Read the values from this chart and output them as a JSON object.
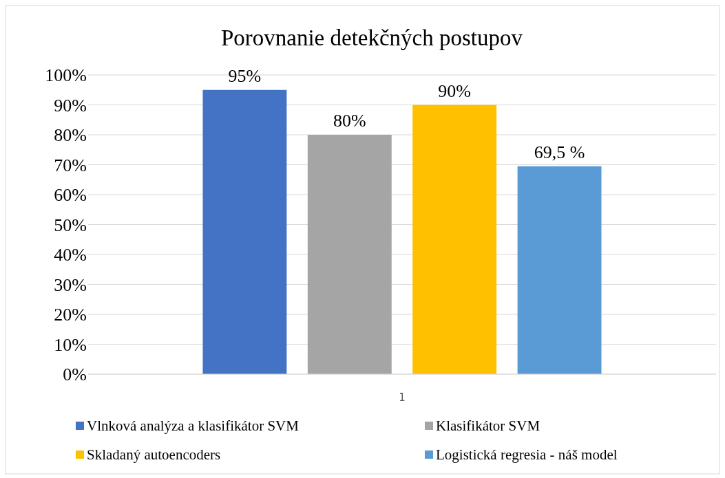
{
  "chart_data": {
    "type": "bar",
    "title": "Porovnanie detekčných postupov",
    "categories": [
      "1"
    ],
    "series": [
      {
        "name": "Vlnková analýza a klasifikátor SVM",
        "color": "#4472c4",
        "values": [
          95
        ],
        "value_labels": [
          "95%"
        ]
      },
      {
        "name": "Klasifikátor SVM",
        "color": "#a5a5a5",
        "values": [
          80
        ],
        "value_labels": [
          "80%"
        ]
      },
      {
        "name": "Skladaný autoencoders",
        "color": "#ffc000",
        "values": [
          90
        ],
        "value_labels": [
          "90%"
        ]
      },
      {
        "name": "Logistická regresia - náš model",
        "color": "#5b9bd5",
        "values": [
          69.5
        ],
        "value_labels": [
          "69,5 %"
        ]
      }
    ],
    "ylim": [
      0,
      100
    ],
    "yticks": [
      {
        "value": 0,
        "label": "0%"
      },
      {
        "value": 10,
        "label": "10%"
      },
      {
        "value": 20,
        "label": "20%"
      },
      {
        "value": 30,
        "label": "30%"
      },
      {
        "value": 40,
        "label": "40%"
      },
      {
        "value": 50,
        "label": "50%"
      },
      {
        "value": 60,
        "label": "60%"
      },
      {
        "value": 70,
        "label": "70%"
      },
      {
        "value": 80,
        "label": "80%"
      },
      {
        "value": 90,
        "label": "90%"
      },
      {
        "value": 100,
        "label": "100%"
      }
    ],
    "grid": "y",
    "legend": "bottom"
  }
}
